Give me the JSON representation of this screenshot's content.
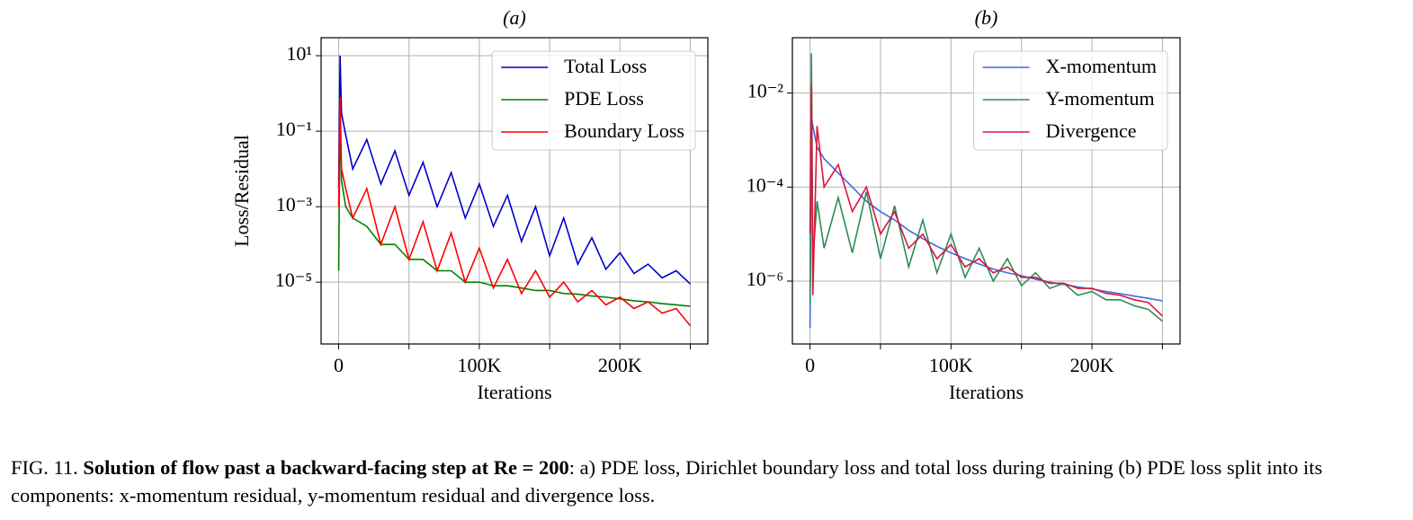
{
  "chart_data": [
    {
      "type": "line",
      "title": "(a)",
      "xlabel": "Iterations",
      "ylabel": "Loss/Residual",
      "x": [
        0,
        1000,
        2000,
        5000,
        10000,
        20000,
        30000,
        40000,
        50000,
        60000,
        70000,
        80000,
        90000,
        100000,
        110000,
        120000,
        130000,
        140000,
        150000,
        160000,
        170000,
        180000,
        190000,
        200000,
        210000,
        220000,
        230000,
        240000,
        250000
      ],
      "series": [
        {
          "name": "Total Loss",
          "color": "#0000cd",
          "values": [
            0.003,
            10,
            0.3,
            0.08,
            0.01,
            0.06,
            0.004,
            0.03,
            0.002,
            0.015,
            0.001,
            0.008,
            0.0005,
            0.004,
            0.0003,
            0.002,
            0.00012,
            0.001,
            5e-05,
            0.0005,
            3e-05,
            0.00015,
            2.2e-05,
            6e-05,
            1.7e-05,
            3e-05,
            1.3e-05,
            2e-05,
            9e-06
          ]
        },
        {
          "name": "PDE Loss",
          "color": "#008000",
          "values": [
            2e-05,
            0.5,
            0.005,
            0.001,
            0.0005,
            0.0003,
            0.0001,
            0.0001,
            4e-05,
            4e-05,
            2e-05,
            2e-05,
            1e-05,
            1e-05,
            8e-06,
            8e-06,
            7e-06,
            6e-06,
            6e-06,
            5e-06,
            4.8e-06,
            4.3e-06,
            4e-06,
            3.6e-06,
            3.2e-06,
            3e-06,
            2.7e-06,
            2.5e-06,
            2.3e-06
          ]
        },
        {
          "name": "Boundary Loss",
          "color": "#ff0000",
          "values": [
            0.001,
            0.8,
            0.01,
            0.003,
            0.0005,
            0.003,
            0.0001,
            0.001,
            4e-05,
            0.0004,
            2e-05,
            0.0002,
            1e-05,
            8e-05,
            7e-06,
            4e-05,
            5e-06,
            2e-05,
            4e-06,
            1e-05,
            3e-06,
            6e-06,
            2.5e-06,
            4e-06,
            2e-06,
            3e-06,
            1.5e-06,
            2e-06,
            7e-07
          ]
        }
      ],
      "xlim": [
        -12500,
        262500
      ],
      "xticks": [
        0,
        {
          "value": 50000,
          "label": null
        },
        {
          "value": 100000,
          "label": "100K"
        },
        {
          "value": 150000,
          "label": null
        },
        {
          "value": 200000,
          "label": "200K"
        },
        {
          "value": 250000,
          "label": null
        }
      ],
      "ylim": [
        2.3e-07,
        30
      ],
      "log_y": true,
      "yticks": [
        {
          "value": 10,
          "label": "10¹"
        },
        {
          "value": 0.1,
          "label": "10⁻¹"
        },
        {
          "value": 0.001,
          "label": "10⁻³"
        },
        {
          "value": 1e-05,
          "label": "10⁻⁵"
        }
      ],
      "grid": true,
      "legend": "upper right"
    },
    {
      "type": "line",
      "title": "(b)",
      "xlabel": "Iterations",
      "x": [
        0,
        1000,
        2000,
        5000,
        10000,
        20000,
        30000,
        40000,
        50000,
        60000,
        70000,
        80000,
        90000,
        100000,
        110000,
        120000,
        130000,
        140000,
        150000,
        160000,
        170000,
        180000,
        190000,
        200000,
        210000,
        220000,
        230000,
        240000,
        250000
      ],
      "series": [
        {
          "name": "X-momentum",
          "color": "#4169e1",
          "values": [
            1e-07,
            0.003,
            0.002,
            0.0007,
            0.0004,
            0.0002,
            0.0001,
            5e-05,
            3e-05,
            2e-05,
            1.2e-05,
            8e-06,
            5.5e-06,
            4e-06,
            3e-06,
            2.3e-06,
            1.8e-06,
            1.5e-06,
            1.3e-06,
            1.1e-06,
            9.5e-07,
            8.5e-07,
            7.5e-07,
            6.8e-07,
            6e-07,
            5.4e-07,
            4.8e-07,
            4.3e-07,
            3.8e-07
          ]
        },
        {
          "name": "Y-momentum",
          "color": "#2e8b57",
          "values": [
            3e-07,
            0.07,
            3e-06,
            5e-05,
            5e-06,
            6e-05,
            4e-06,
            8e-05,
            3e-06,
            4e-05,
            2e-06,
            2e-05,
            1.5e-06,
            1e-05,
            1.2e-06,
            5e-06,
            1e-06,
            3e-06,
            8e-07,
            1.5e-06,
            7e-07,
            9e-07,
            5e-07,
            6e-07,
            4e-07,
            4e-07,
            3e-07,
            2.5e-07,
            1.4e-07
          ]
        },
        {
          "name": "Divergence",
          "color": "#dc143c",
          "values": [
            1e-05,
            0.015,
            5e-07,
            0.002,
            0.0001,
            0.0003,
            3e-05,
            0.0001,
            1e-05,
            3e-05,
            5e-06,
            1e-05,
            3e-06,
            6e-06,
            2e-06,
            3e-06,
            1.5e-06,
            2e-06,
            1.2e-06,
            1.2e-06,
            9e-07,
            9e-07,
            7e-07,
            7e-07,
            5.5e-07,
            5e-07,
            4e-07,
            3.5e-07,
            1.8e-07
          ]
        }
      ],
      "xlim": [
        -12500,
        262500
      ],
      "xticks": [
        0,
        {
          "value": 50000,
          "label": null
        },
        {
          "value": 100000,
          "label": "100K"
        },
        {
          "value": 150000,
          "label": null
        },
        {
          "value": 200000,
          "label": "200K"
        },
        {
          "value": 250000,
          "label": null
        }
      ],
      "ylim": [
        4.6e-08,
        0.15
      ],
      "log_y": true,
      "yticks": [
        {
          "value": 0.01,
          "label": "10⁻²"
        },
        {
          "value": 0.0001,
          "label": "10⁻⁴"
        },
        {
          "value": 1e-06,
          "label": "10⁻⁶"
        }
      ],
      "grid": true,
      "legend": "upper right"
    }
  ],
  "caption": {
    "label": "FIG. 11.",
    "bold": "Solution of flow past a backward-facing step at Re = 200",
    "text": ": a) PDE loss, Dirichlet boundary loss and total loss during training (b) PDE loss split into its components: x-momentum residual, y-momentum residual and divergence loss."
  }
}
